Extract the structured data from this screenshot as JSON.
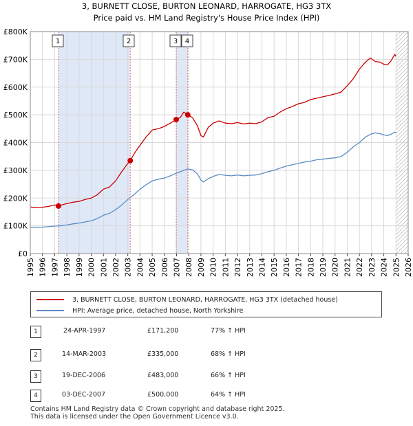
{
  "chart_data": {
    "type": "line",
    "title": "3, BURNETT CLOSE, BURTON LEONARD, HARROGATE, HG3 3TX",
    "subtitle": "Price paid vs. HM Land Registry's House Price Index (HPI)",
    "xlim": [
      1995,
      2026
    ],
    "ylim": [
      0,
      800000
    ],
    "x_ticks": [
      "1995",
      "1996",
      "1997",
      "1998",
      "1999",
      "2000",
      "2001",
      "2002",
      "2003",
      "2004",
      "2005",
      "2006",
      "2007",
      "2008",
      "2009",
      "2010",
      "2011",
      "2012",
      "2013",
      "2014",
      "2015",
      "2016",
      "2017",
      "2018",
      "2019",
      "2020",
      "2021",
      "2022",
      "2023",
      "2024",
      "2025",
      "2026"
    ],
    "y_ticks": [
      {
        "value": 0,
        "label": "£0"
      },
      {
        "value": 100000,
        "label": "£100K"
      },
      {
        "value": 200000,
        "label": "£200K"
      },
      {
        "value": 300000,
        "label": "£300K"
      },
      {
        "value": 400000,
        "label": "£400K"
      },
      {
        "value": 500000,
        "label": "£500K"
      },
      {
        "value": 600000,
        "label": "£600K"
      },
      {
        "value": 700000,
        "label": "£700K"
      },
      {
        "value": 800000,
        "label": "£800K"
      }
    ],
    "grid": true,
    "shaded_ranges": [
      [
        1997.31,
        2003.2
      ],
      [
        2006.97,
        2007.92
      ]
    ],
    "hatched_from": 2025.0,
    "series": [
      {
        "name": "3, BURNETT CLOSE, BURTON LEONARD, HARROGATE, HG3 3TX (detached house)",
        "color": "#cc0000",
        "x": [
          1995.0,
          1995.5,
          1996.0,
          1996.5,
          1997.0,
          1997.31,
          1997.8,
          1998.5,
          1999.0,
          1999.5,
          2000.0,
          2000.5,
          2001.0,
          2001.5,
          2002.0,
          2002.5,
          2003.0,
          2003.2,
          2003.6,
          2004.0,
          2004.5,
          2005.0,
          2005.5,
          2006.0,
          2006.5,
          2006.97,
          2007.3,
          2007.6,
          2007.92,
          2008.3,
          2008.7,
          2009.0,
          2009.2,
          2009.6,
          2010.0,
          2010.5,
          2011.0,
          2011.5,
          2012.0,
          2012.5,
          2013.0,
          2013.5,
          2014.0,
          2014.5,
          2015.0,
          2015.5,
          2016.0,
          2016.5,
          2017.0,
          2017.5,
          2018.0,
          2018.5,
          2019.0,
          2019.5,
          2020.0,
          2020.5,
          2021.0,
          2021.5,
          2022.0,
          2022.5,
          2022.9,
          2023.3,
          2023.7,
          2024.0,
          2024.3,
          2024.6,
          2024.9,
          2025.0
        ],
        "values": [
          168000,
          165000,
          167000,
          170000,
          175000,
          171200,
          178000,
          185000,
          188000,
          195000,
          200000,
          212000,
          232000,
          240000,
          262000,
          295000,
          325000,
          335000,
          365000,
          390000,
          420000,
          445000,
          450000,
          458000,
          470000,
          483000,
          490000,
          510000,
          500000,
          490000,
          462000,
          425000,
          420000,
          455000,
          470000,
          478000,
          470000,
          468000,
          472000,
          467000,
          470000,
          468000,
          475000,
          490000,
          495000,
          510000,
          522000,
          530000,
          540000,
          545000,
          555000,
          560000,
          565000,
          570000,
          575000,
          582000,
          605000,
          630000,
          665000,
          690000,
          705000,
          692000,
          690000,
          682000,
          680000,
          695000,
          718000,
          710000
        ]
      },
      {
        "name": "HPI: Average price, detached house, North Yorkshire",
        "color": "#5b8ac6",
        "x": [
          1995.0,
          1995.5,
          1996.0,
          1996.5,
          1997.0,
          1997.5,
          1998.0,
          1998.5,
          1999.0,
          1999.5,
          2000.0,
          2000.5,
          2001.0,
          2001.5,
          2002.0,
          2002.5,
          2003.0,
          2003.5,
          2004.0,
          2004.5,
          2005.0,
          2005.5,
          2006.0,
          2006.5,
          2007.0,
          2007.5,
          2007.9,
          2008.3,
          2008.7,
          2009.0,
          2009.2,
          2009.6,
          2010.0,
          2010.5,
          2011.0,
          2011.5,
          2012.0,
          2012.5,
          2013.0,
          2013.5,
          2014.0,
          2014.5,
          2015.0,
          2015.5,
          2016.0,
          2016.5,
          2017.0,
          2017.5,
          2018.0,
          2018.5,
          2019.0,
          2019.5,
          2020.0,
          2020.5,
          2021.0,
          2021.5,
          2022.0,
          2022.5,
          2022.9,
          2023.3,
          2023.7,
          2024.0,
          2024.3,
          2024.6,
          2024.9,
          2025.0
        ],
        "values": [
          95000,
          94000,
          95000,
          97000,
          99000,
          100000,
          103000,
          107000,
          110000,
          114000,
          118000,
          126000,
          138000,
          145000,
          158000,
          175000,
          195000,
          212000,
          232000,
          248000,
          262000,
          268000,
          272000,
          280000,
          290000,
          298000,
          305000,
          302000,
          288000,
          265000,
          258000,
          270000,
          278000,
          285000,
          282000,
          280000,
          283000,
          280000,
          282000,
          283000,
          288000,
          295000,
          300000,
          308000,
          315000,
          320000,
          325000,
          330000,
          333000,
          338000,
          340000,
          343000,
          345000,
          350000,
          365000,
          385000,
          400000,
          420000,
          430000,
          435000,
          432000,
          428000,
          425000,
          430000,
          438000,
          435000
        ]
      }
    ],
    "sale_markers": [
      {
        "label": "1",
        "x": 1997.31,
        "value": 171200
      },
      {
        "label": "2",
        "x": 2003.2,
        "value": 335000
      },
      {
        "label": "3",
        "x": 2006.97,
        "value": 483000
      },
      {
        "label": "4",
        "x": 2007.92,
        "value": 500000
      }
    ]
  },
  "legend": {
    "property_label": "3, BURNETT CLOSE, BURTON LEONARD, HARROGATE, HG3 3TX (detached house)",
    "hpi_label": "HPI: Average price, detached house, North Yorkshire",
    "property_color": "#cc0000",
    "hpi_color": "#5b8ac6"
  },
  "sales": [
    {
      "num": "1",
      "date": "24-APR-1997",
      "price": "£171,200",
      "hpi": "77% ↑ HPI"
    },
    {
      "num": "2",
      "date": "14-MAR-2003",
      "price": "£335,000",
      "hpi": "68% ↑ HPI"
    },
    {
      "num": "3",
      "date": "19-DEC-2006",
      "price": "£483,000",
      "hpi": "66% ↑ HPI"
    },
    {
      "num": "4",
      "date": "03-DEC-2007",
      "price": "£500,000",
      "hpi": "64% ↑ HPI"
    }
  ],
  "footer": {
    "line1": "Contains HM Land Registry data © Crown copyright and database right 2025.",
    "line2": "This data is licensed under the Open Government Licence v3.0."
  }
}
